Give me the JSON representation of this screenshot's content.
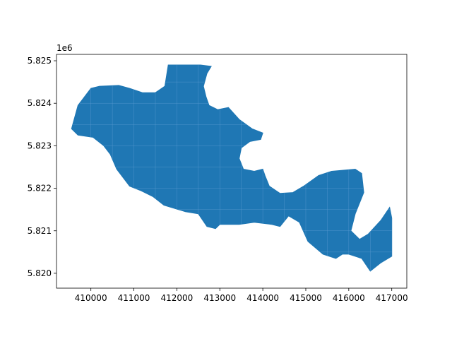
{
  "chart_data": {
    "type": "map",
    "x_ticks": [
      "410000",
      "411000",
      "412000",
      "413000",
      "414000",
      "415000",
      "416000",
      "417000"
    ],
    "y_ticks": [
      "5.820",
      "5.821",
      "5.822",
      "5.823",
      "5.824",
      "5.825"
    ],
    "y_offset": "1e6",
    "xlim": [
      409200,
      417350
    ],
    "ylim": [
      5819650,
      5825150
    ],
    "fill_color": "#1f77b4",
    "outline": [
      [
        409550,
        5823400
      ],
      [
        409700,
        5823950
      ],
      [
        410000,
        5824350
      ],
      [
        410200,
        5824400
      ],
      [
        410650,
        5824420
      ],
      [
        410900,
        5824350
      ],
      [
        411200,
        5824250
      ],
      [
        411500,
        5824250
      ],
      [
        411720,
        5824400
      ],
      [
        411800,
        5824900
      ],
      [
        412550,
        5824900
      ],
      [
        412800,
        5824870
      ],
      [
        412700,
        5824700
      ],
      [
        412620,
        5824400
      ],
      [
        412680,
        5824150
      ],
      [
        412750,
        5823950
      ],
      [
        412950,
        5823850
      ],
      [
        413200,
        5823900
      ],
      [
        413450,
        5823620
      ],
      [
        413750,
        5823400
      ],
      [
        414000,
        5823300
      ],
      [
        413950,
        5823150
      ],
      [
        413700,
        5823100
      ],
      [
        413500,
        5822950
      ],
      [
        413450,
        5822700
      ],
      [
        413550,
        5822450
      ],
      [
        413800,
        5822400
      ],
      [
        414000,
        5822450
      ],
      [
        414050,
        5822300
      ],
      [
        414150,
        5822050
      ],
      [
        414400,
        5821880
      ],
      [
        414700,
        5821900
      ],
      [
        414950,
        5822050
      ],
      [
        415300,
        5822300
      ],
      [
        415600,
        5822400
      ],
      [
        416150,
        5822450
      ],
      [
        416300,
        5822350
      ],
      [
        416350,
        5821900
      ],
      [
        416150,
        5821400
      ],
      [
        416050,
        5821000
      ],
      [
        416250,
        5820800
      ],
      [
        416450,
        5820920
      ],
      [
        416750,
        5821250
      ],
      [
        416950,
        5821550
      ],
      [
        417000,
        5821300
      ],
      [
        417000,
        5820400
      ],
      [
        416750,
        5820250
      ],
      [
        416500,
        5820050
      ],
      [
        416300,
        5820350
      ],
      [
        416000,
        5820450
      ],
      [
        415850,
        5820450
      ],
      [
        415700,
        5820350
      ],
      [
        415400,
        5820450
      ],
      [
        415050,
        5820750
      ],
      [
        414850,
        5821200
      ],
      [
        414600,
        5821350
      ],
      [
        414400,
        5821100
      ],
      [
        414200,
        5821150
      ],
      [
        413800,
        5821200
      ],
      [
        413450,
        5821150
      ],
      [
        413000,
        5821150
      ],
      [
        412900,
        5821050
      ],
      [
        412700,
        5821100
      ],
      [
        412500,
        5821400
      ],
      [
        412200,
        5821450
      ],
      [
        411700,
        5821600
      ],
      [
        411450,
        5821800
      ],
      [
        411150,
        5821950
      ],
      [
        410900,
        5822050
      ],
      [
        410600,
        5822450
      ],
      [
        410450,
        5822800
      ],
      [
        410300,
        5823000
      ],
      [
        410050,
        5823200
      ],
      [
        409700,
        5823250
      ]
    ]
  }
}
